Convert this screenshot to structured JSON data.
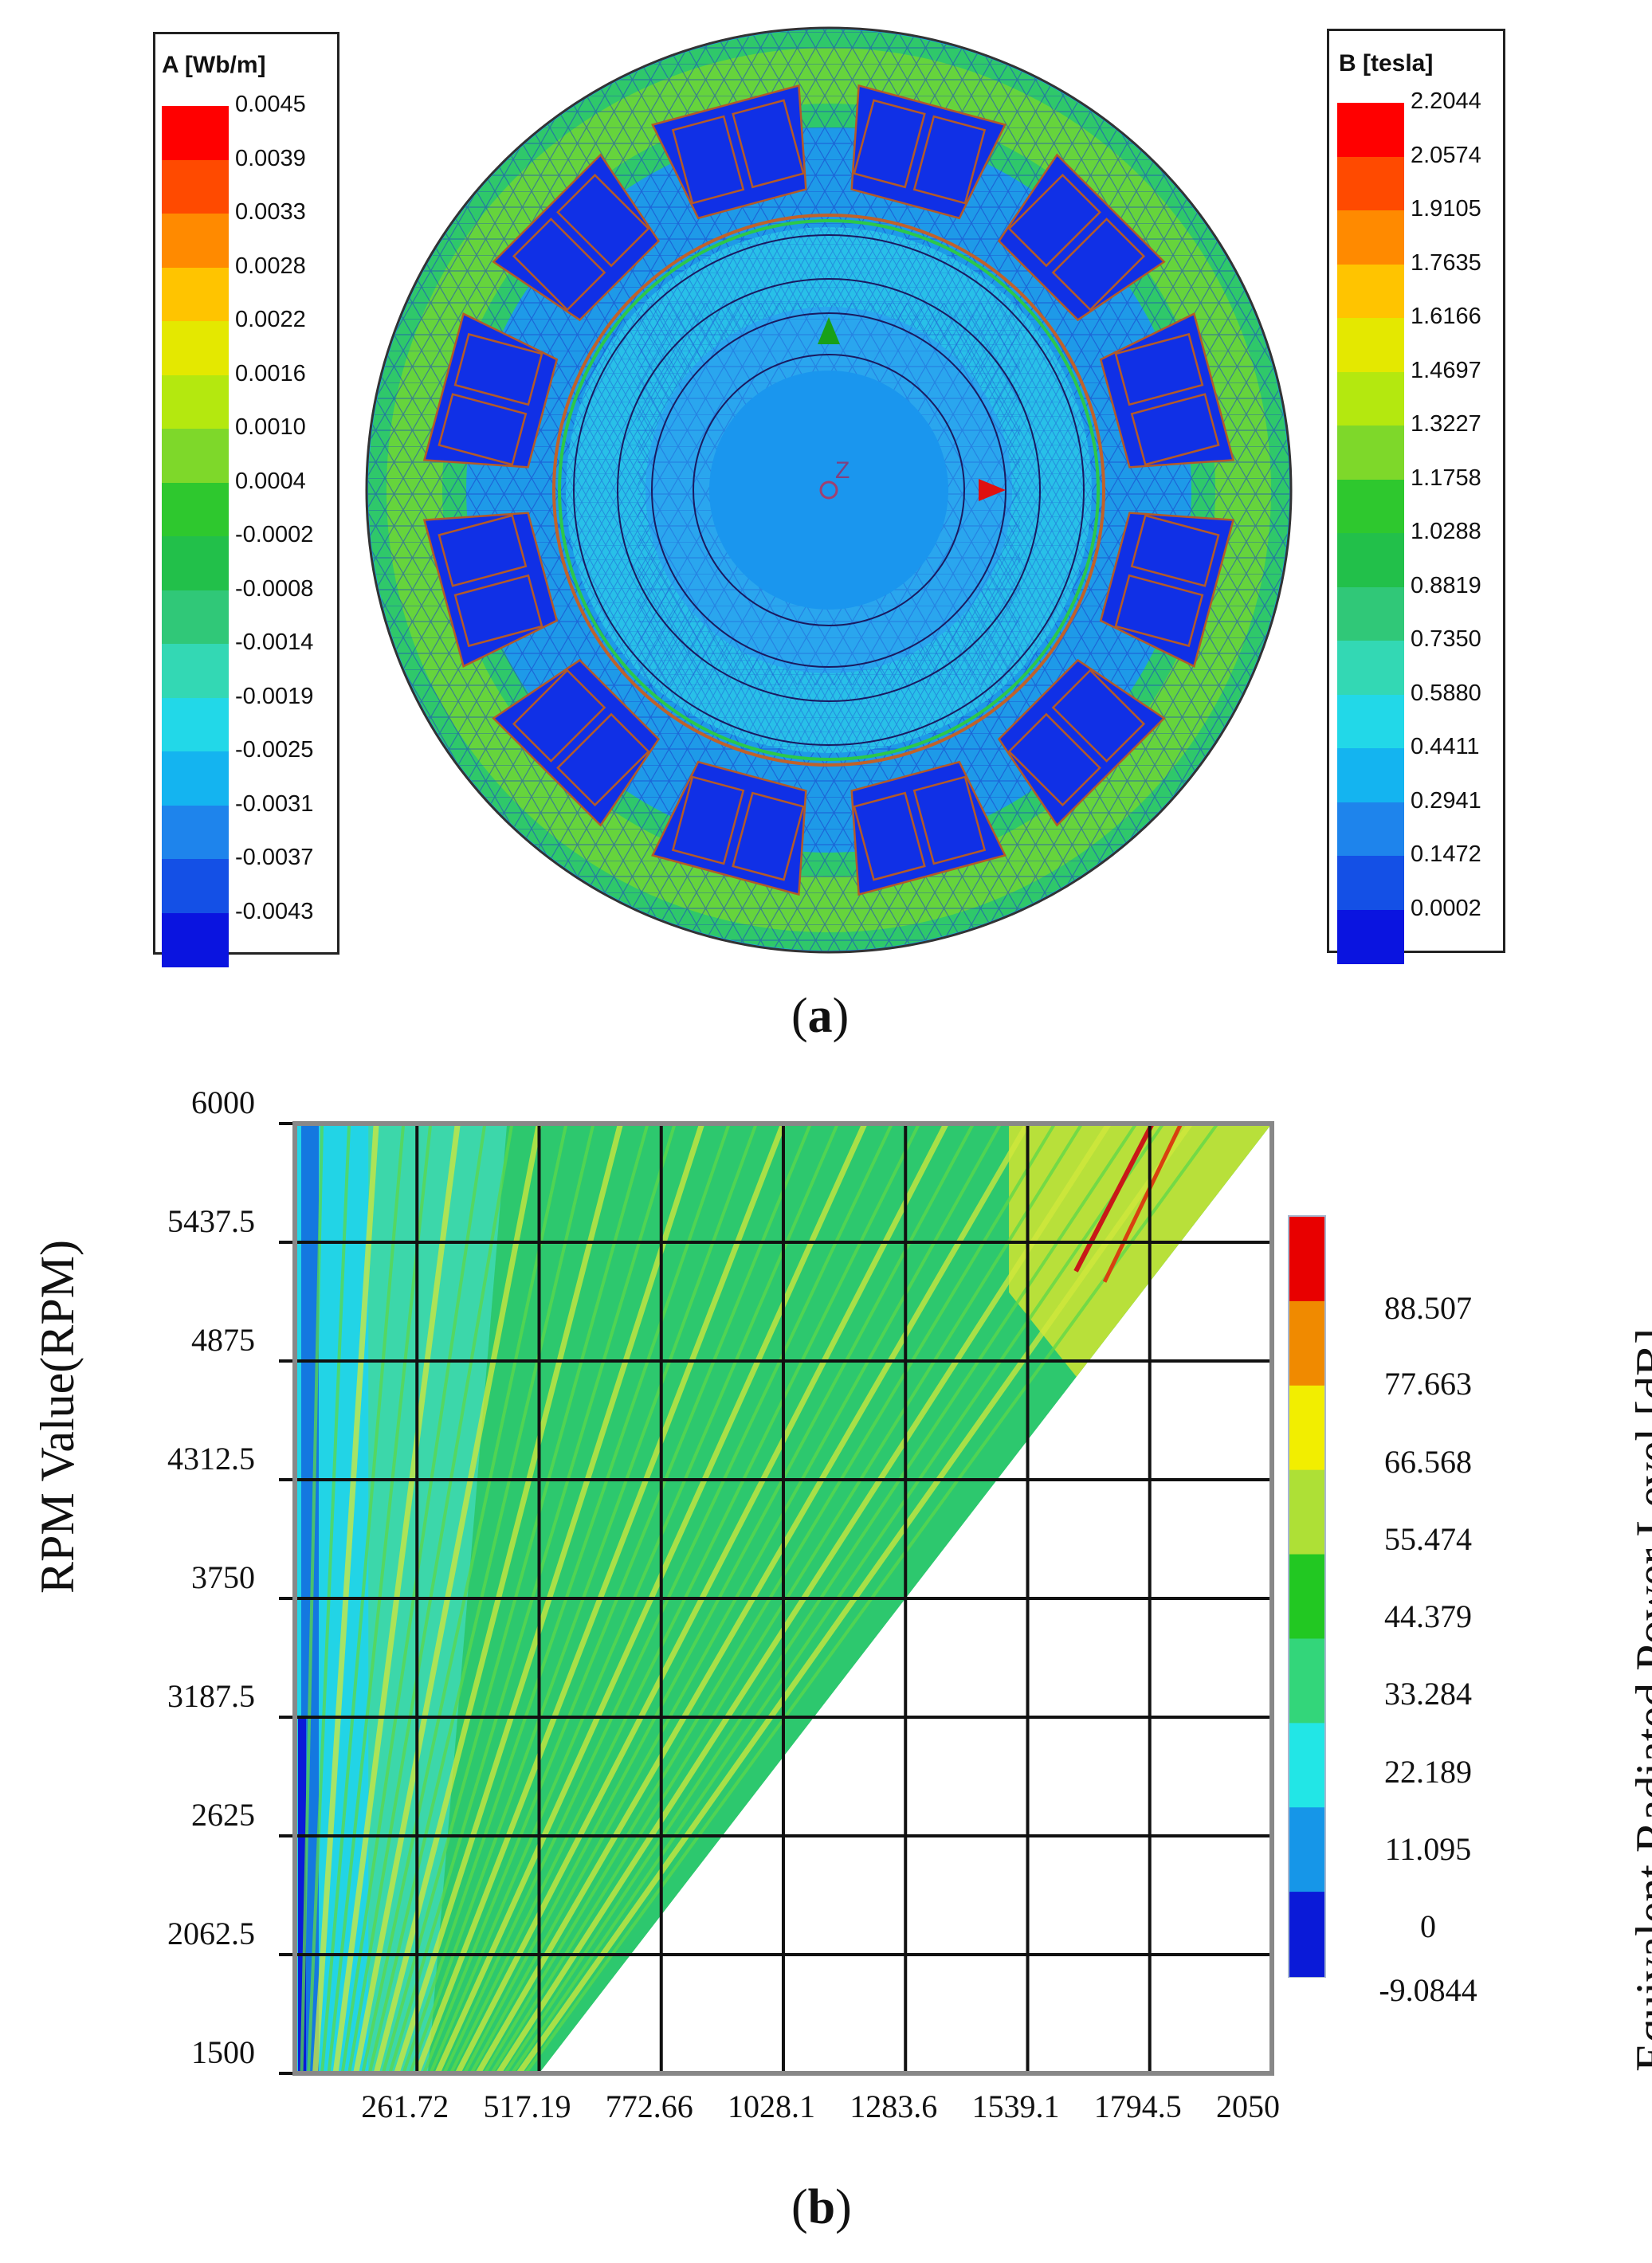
{
  "figure_a": {
    "caption_letter": "a",
    "legend_left": {
      "title": "A [Wb/m]",
      "labels": [
        "0.0045",
        "0.0039",
        "0.0033",
        "0.0028",
        "0.0022",
        "0.0016",
        "0.0010",
        "0.0004",
        "-0.0002",
        "-0.0008",
        "-0.0014",
        "-0.0019",
        "-0.0025",
        "-0.0031",
        "-0.0037",
        "-0.0043"
      ],
      "colors": [
        "#ff0000",
        "#ff4a00",
        "#ff8a00",
        "#ffc400",
        "#e4e800",
        "#b4e80f",
        "#7ed82a",
        "#2ec82e",
        "#22c04a",
        "#30c878",
        "#33d8b4",
        "#22d8e8",
        "#14b4f0",
        "#1e84ec",
        "#1450e6",
        "#0a14e0"
      ]
    },
    "legend_right": {
      "title": "B [tesla]",
      "labels": [
        "2.2044",
        "2.0574",
        "1.9105",
        "1.7635",
        "1.6166",
        "1.4697",
        "1.3227",
        "1.1758",
        "1.0288",
        "0.8819",
        "0.7350",
        "0.5880",
        "0.4411",
        "0.2941",
        "0.1472",
        "0.0002"
      ],
      "colors": [
        "#ff0000",
        "#ff4a00",
        "#ff8a00",
        "#ffc400",
        "#e4e800",
        "#b4e80f",
        "#7ed82a",
        "#2ec82e",
        "#22c04a",
        "#30c878",
        "#33d8b4",
        "#22d8e8",
        "#14b4f0",
        "#1e84ec",
        "#1450e6",
        "#0a14e0"
      ]
    },
    "axis_marker_label": "Z"
  },
  "figure_b": {
    "caption_letter": "b",
    "chart_data": {
      "type": "heatmap",
      "title": "",
      "xlabel": "",
      "ylabel": "RPM Value(RPM)",
      "colorbar_label": "Equivalent Radiated Power Level [dB]",
      "x_ticks": [
        "261.72",
        "517.19",
        "772.66",
        "1028.1",
        "1283.6",
        "1539.1",
        "1794.5",
        "2050"
      ],
      "y_ticks": [
        "6000",
        "5437.5",
        "4875",
        "4312.5",
        "3750",
        "3187.5",
        "2625",
        "2062.5",
        "1500"
      ],
      "x_range": [
        6.25,
        2050
      ],
      "y_range": [
        1500,
        6000
      ],
      "colorbar_ticks": [
        "88.507",
        "77.663",
        "66.568",
        "55.474",
        "44.379",
        "33.284",
        "22.189",
        "11.095",
        "0",
        "-9.0844"
      ],
      "colorbar_range": [
        -9.0844,
        99.6
      ],
      "colorbar_colors": [
        "#e80000",
        "#f08a00",
        "#f2ee00",
        "#aee036",
        "#22c822",
        "#33d67a",
        "#22e6e6",
        "#1696e8",
        "#0a1ad8"
      ],
      "data_region": "triangular, bounded by x from 6.25 to 2050 Hz along the line x proportional to RPM"
    }
  }
}
